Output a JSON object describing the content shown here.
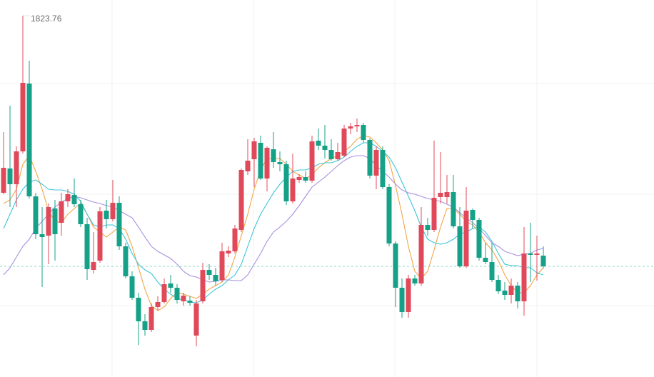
{
  "chart_data": {
    "type": "candlestick",
    "ylim": [
      1798.46,
      1824.86
    ],
    "up_color": "#e0495a",
    "down_color": "#14a187",
    "high_marker": 1823.76,
    "last_price": 1806.21,
    "last_price_color": "#8fd8c6",
    "ohlc": [
      [
        1811.36,
        1815.61,
        1811.26,
        1813.11
      ],
      [
        1813.06,
        1817.46,
        1810.36,
        1811.96
      ],
      [
        1811.96,
        1814.61,
        1810.36,
        1814.26
      ],
      [
        1814.26,
        1823.76,
        1814.11,
        1819.06
      ],
      [
        1819.01,
        1820.61,
        1810.96,
        1811.11
      ],
      [
        1811.11,
        1811.36,
        1808.11,
        1808.46
      ],
      [
        1808.46,
        1810.36,
        1804.76,
        1808.26
      ],
      [
        1808.36,
        1810.61,
        1806.36,
        1810.36
      ],
      [
        1810.26,
        1810.86,
        1806.61,
        1808.46
      ],
      [
        1809.26,
        1811.36,
        1808.36,
        1810.76
      ],
      [
        1810.76,
        1811.61,
        1810.36,
        1811.26
      ],
      [
        1811.21,
        1812.36,
        1810.36,
        1810.56
      ],
      [
        1810.56,
        1810.86,
        1808.96,
        1809.16
      ],
      [
        1809.16,
        1809.61,
        1805.26,
        1806.01
      ],
      [
        1805.96,
        1808.61,
        1805.71,
        1806.51
      ],
      [
        1806.61,
        1810.36,
        1806.46,
        1810.06
      ],
      [
        1810.11,
        1810.86,
        1808.86,
        1809.51
      ],
      [
        1809.51,
        1812.26,
        1809.36,
        1810.66
      ],
      [
        1810.66,
        1811.11,
        1807.36,
        1807.61
      ],
      [
        1807.61,
        1807.86,
        1805.36,
        1805.51
      ],
      [
        1805.51,
        1805.86,
        1803.86,
        1804.01
      ],
      [
        1804.01,
        1804.36,
        1800.71,
        1802.36
      ],
      [
        1802.36,
        1802.86,
        1801.36,
        1801.76
      ],
      [
        1801.76,
        1803.61,
        1801.61,
        1803.36
      ],
      [
        1803.36,
        1804.11,
        1803.11,
        1803.71
      ],
      [
        1803.71,
        1805.36,
        1803.61,
        1804.96
      ],
      [
        1805.01,
        1805.61,
        1804.36,
        1804.71
      ],
      [
        1804.71,
        1804.96,
        1803.61,
        1803.86
      ],
      [
        1803.76,
        1804.36,
        1803.46,
        1804.16
      ],
      [
        1803.81,
        1804.11,
        1803.46,
        1803.66
      ],
      [
        1801.36,
        1803.86,
        1800.61,
        1803.61
      ],
      [
        1803.76,
        1806.46,
        1803.61,
        1805.96
      ],
      [
        1805.96,
        1806.36,
        1805.26,
        1805.61
      ],
      [
        1805.61,
        1806.11,
        1804.86,
        1805.16
      ],
      [
        1805.26,
        1807.86,
        1805.11,
        1807.26
      ],
      [
        1807.11,
        1807.61,
        1806.86,
        1807.31
      ],
      [
        1807.26,
        1809.11,
        1807.11,
        1808.86
      ],
      [
        1808.76,
        1813.06,
        1808.61,
        1812.96
      ],
      [
        1812.86,
        1815.11,
        1812.61,
        1813.61
      ],
      [
        1813.71,
        1815.21,
        1811.76,
        1814.96
      ],
      [
        1814.86,
        1815.36,
        1812.26,
        1812.36
      ],
      [
        1812.36,
        1814.61,
        1811.46,
        1814.51
      ],
      [
        1814.41,
        1815.61,
        1813.11,
        1813.51
      ],
      [
        1813.51,
        1814.26,
        1812.86,
        1813.36
      ],
      [
        1813.36,
        1813.61,
        1810.51,
        1810.76
      ],
      [
        1810.76,
        1814.11,
        1810.61,
        1812.36
      ],
      [
        1812.26,
        1812.66,
        1812.06,
        1812.46
      ],
      [
        1812.46,
        1812.86,
        1812.06,
        1812.21
      ],
      [
        1812.21,
        1815.36,
        1812.06,
        1814.96
      ],
      [
        1815.01,
        1815.86,
        1814.36,
        1814.66
      ],
      [
        1814.66,
        1816.11,
        1813.76,
        1814.36
      ],
      [
        1814.36,
        1815.11,
        1813.61,
        1813.71
      ],
      [
        1813.71,
        1814.86,
        1813.61,
        1814.21
      ],
      [
        1813.96,
        1816.11,
        1813.86,
        1815.86
      ],
      [
        1815.86,
        1816.26,
        1815.46,
        1816.01
      ],
      [
        1816.01,
        1816.56,
        1815.61,
        1816.11
      ],
      [
        1816.11,
        1816.26,
        1814.86,
        1815.06
      ],
      [
        1815.06,
        1815.16,
        1812.36,
        1812.56
      ],
      [
        1812.56,
        1814.61,
        1811.61,
        1814.36
      ],
      [
        1814.36,
        1814.61,
        1811.61,
        1811.76
      ],
      [
        1811.76,
        1811.96,
        1807.61,
        1807.81
      ],
      [
        1807.81,
        1807.96,
        1803.36,
        1804.71
      ],
      [
        1804.71,
        1805.36,
        1802.61,
        1803.01
      ],
      [
        1803.01,
        1805.61,
        1802.61,
        1805.36
      ],
      [
        1805.36,
        1805.61,
        1804.86,
        1805.01
      ],
      [
        1805.01,
        1810.36,
        1804.86,
        1809.11
      ],
      [
        1809.11,
        1809.61,
        1808.36,
        1808.76
      ],
      [
        1808.76,
        1815.01,
        1808.61,
        1811.01
      ],
      [
        1811.06,
        1814.21,
        1810.61,
        1811.36
      ],
      [
        1811.06,
        1812.61,
        1810.61,
        1811.41
      ],
      [
        1811.41,
        1812.61,
        1808.86,
        1809.01
      ],
      [
        1809.01,
        1810.36,
        1806.11,
        1806.21
      ],
      [
        1806.21,
        1811.76,
        1806.11,
        1810.11
      ],
      [
        1810.16,
        1810.26,
        1808.86,
        1809.46
      ],
      [
        1809.46,
        1809.61,
        1806.61,
        1806.81
      ],
      [
        1806.81,
        1807.86,
        1806.36,
        1806.51
      ],
      [
        1806.51,
        1807.86,
        1805.11,
        1805.26
      ],
      [
        1805.26,
        1805.61,
        1804.26,
        1804.46
      ],
      [
        1804.51,
        1805.11,
        1803.86,
        1804.21
      ],
      [
        1804.21,
        1805.36,
        1803.61,
        1804.86
      ],
      [
        1804.86,
        1805.11,
        1803.26,
        1803.76
      ],
      [
        1803.76,
        1808.96,
        1802.76,
        1807.11
      ],
      [
        1807.11,
        1809.26,
        1805.11,
        1807.01
      ],
      [
        1807.01,
        1808.36,
        1805.21,
        1807.11
      ],
      [
        1806.96,
        1807.61,
        1806.06,
        1806.21
      ]
    ],
    "lines": [
      {
        "color": "#f4a447",
        "values": [
          1810.61,
          1810.86,
          1811.61,
          1813.36,
          1813.96,
          1812.86,
          1811.61,
          1810.11,
          1809.36,
          1809.26,
          1809.86,
          1810.26,
          1810.61,
          1809.86,
          1808.96,
          1808.61,
          1808.26,
          1808.61,
          1808.96,
          1808.76,
          1807.61,
          1806.11,
          1804.61,
          1803.46,
          1803.11,
          1803.36,
          1803.96,
          1804.36,
          1804.26,
          1804.11,
          1803.96,
          1804.26,
          1804.61,
          1804.86,
          1805.11,
          1805.61,
          1806.86,
          1808.36,
          1809.86,
          1811.61,
          1812.96,
          1813.76,
          1813.76,
          1813.76,
          1813.36,
          1812.86,
          1812.61,
          1812.36,
          1812.61,
          1813.11,
          1813.46,
          1813.76,
          1813.96,
          1814.26,
          1814.61,
          1815.11,
          1815.36,
          1815.26,
          1814.86,
          1814.36,
          1813.61,
          1811.86,
          1809.86,
          1807.61,
          1805.86,
          1805.36,
          1805.86,
          1807.36,
          1808.96,
          1810.26,
          1810.26,
          1809.86,
          1809.36,
          1809.11,
          1808.61,
          1807.86,
          1807.36,
          1806.61,
          1805.61,
          1804.86,
          1804.36,
          1804.36,
          1804.86,
          1805.61,
          1806.11
        ]
      },
      {
        "color": "#3cc5d8",
        "values": [
          1808.86,
          1809.86,
          1810.86,
          1811.61,
          1812.11,
          1812.26,
          1811.96,
          1811.61,
          1811.56,
          1811.56,
          1811.46,
          1811.26,
          1810.76,
          1809.86,
          1809.11,
          1808.96,
          1809.11,
          1809.11,
          1808.86,
          1808.11,
          1807.11,
          1806.36,
          1805.96,
          1805.71,
          1805.11,
          1804.61,
          1804.26,
          1803.96,
          1803.86,
          1803.71,
          1803.66,
          1803.86,
          1804.26,
          1804.61,
          1804.86,
          1805.26,
          1805.61,
          1806.36,
          1807.61,
          1808.86,
          1809.86,
          1810.61,
          1811.36,
          1811.96,
          1812.46,
          1812.86,
          1812.96,
          1812.96,
          1813.11,
          1813.36,
          1813.46,
          1813.46,
          1813.61,
          1813.86,
          1814.26,
          1814.61,
          1814.86,
          1814.86,
          1814.61,
          1814.26,
          1813.86,
          1813.11,
          1812.11,
          1811.11,
          1810.11,
          1808.96,
          1808.11,
          1807.86,
          1807.76,
          1807.86,
          1808.11,
          1808.46,
          1808.61,
          1808.86,
          1808.96,
          1808.61,
          1807.96,
          1807.11,
          1806.36,
          1806.26,
          1806.26,
          1806.11,
          1806.11,
          1805.76,
          1805.61
        ]
      },
      {
        "color": "#a98fe0",
        "values": [
          1805.61,
          1806.11,
          1806.86,
          1807.61,
          1808.11,
          1808.86,
          1809.36,
          1809.86,
          1810.36,
          1810.71,
          1810.96,
          1811.11,
          1811.01,
          1810.86,
          1810.71,
          1810.61,
          1810.46,
          1810.36,
          1810.11,
          1809.86,
          1809.61,
          1808.96,
          1808.26,
          1807.61,
          1807.26,
          1807.01,
          1806.76,
          1806.36,
          1805.86,
          1805.56,
          1805.46,
          1805.26,
          1805.11,
          1805.16,
          1805.26,
          1805.26,
          1805.21,
          1805.21,
          1805.61,
          1806.36,
          1807.11,
          1807.96,
          1808.61,
          1808.96,
          1809.36,
          1809.86,
          1810.46,
          1811.11,
          1811.76,
          1812.11,
          1812.46,
          1812.86,
          1813.26,
          1813.61,
          1813.86,
          1813.96,
          1813.96,
          1813.76,
          1813.26,
          1812.86,
          1812.46,
          1811.96,
          1811.56,
          1811.36,
          1811.26,
          1811.11,
          1810.96,
          1810.86,
          1810.76,
          1810.56,
          1810.36,
          1809.96,
          1809.61,
          1809.26,
          1808.86,
          1808.36,
          1807.86,
          1807.61,
          1807.26,
          1807.11,
          1806.96,
          1807.06,
          1807.11,
          1807.36,
          1807.46
        ]
      }
    ]
  }
}
